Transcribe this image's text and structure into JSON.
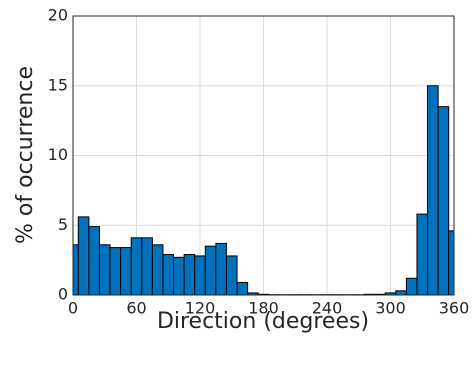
{
  "chart_data": {
    "type": "histogram",
    "xlabel": "Direction (degrees)",
    "ylabel": "% of occurrence",
    "bins": [
      -5,
      5,
      15,
      25,
      35,
      45,
      55,
      65,
      75,
      85,
      95,
      105,
      115,
      125,
      135,
      145,
      155,
      165,
      175,
      185,
      195,
      205,
      215,
      225,
      235,
      245,
      255,
      265,
      275,
      285,
      295,
      305,
      315,
      325,
      335,
      345,
      355,
      365
    ],
    "values": [
      3.6,
      5.6,
      4.9,
      3.6,
      3.4,
      3.4,
      4.1,
      4.1,
      3.6,
      2.9,
      2.7,
      2.9,
      2.8,
      3.5,
      3.7,
      2.8,
      0.9,
      0.15,
      0.05,
      0.02,
      0.02,
      0.02,
      0.02,
      0.02,
      0.02,
      0.02,
      0.02,
      0.02,
      0.05,
      0.05,
      0.15,
      0.3,
      1.2,
      5.8,
      15.0,
      13.5,
      4.6
    ],
    "color": "#0072bd",
    "xlim": [
      0,
      360
    ],
    "xticks": [
      0,
      60,
      120,
      180,
      240,
      300,
      360
    ],
    "ylim": [
      0,
      20
    ],
    "yticks": [
      0,
      5,
      10,
      15,
      20
    ],
    "grid": true
  }
}
